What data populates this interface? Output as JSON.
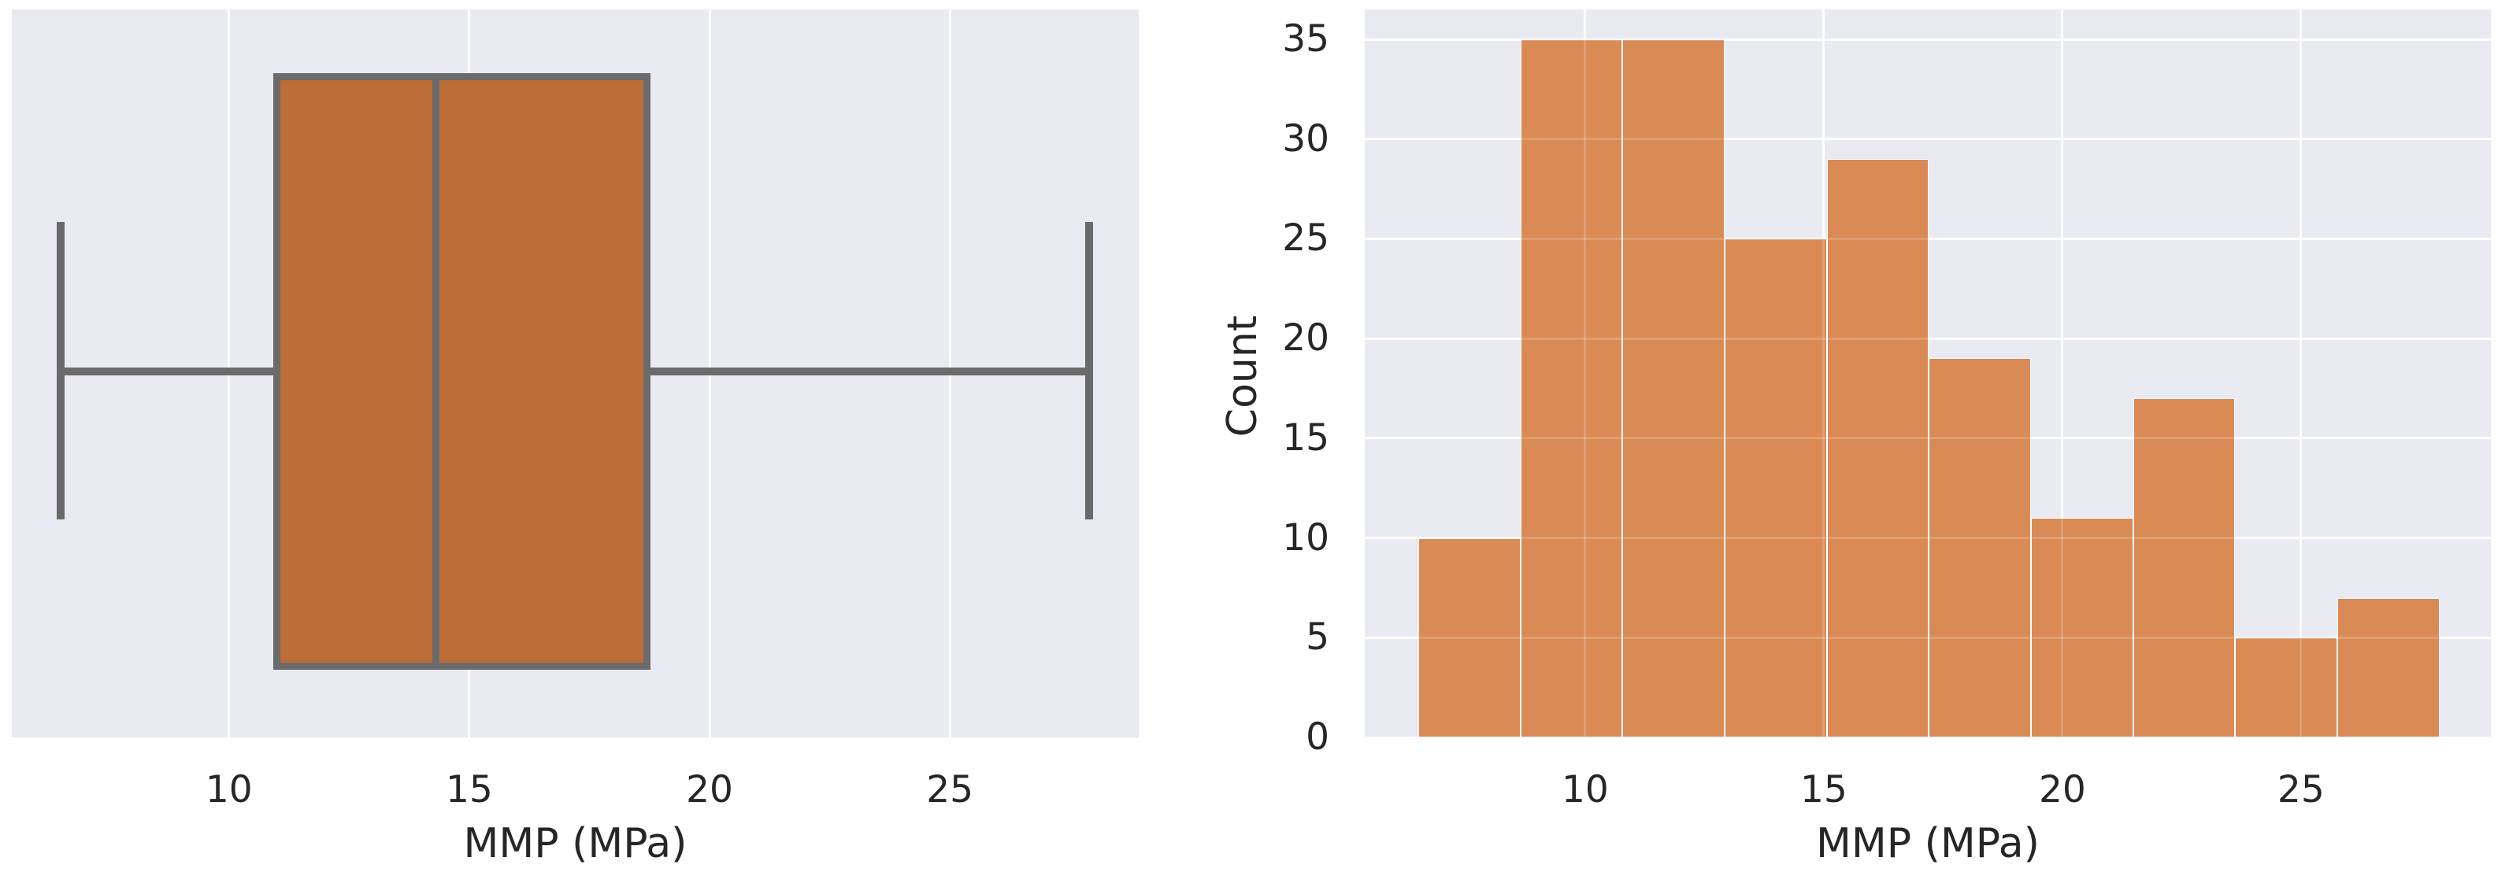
{
  "style": {
    "figure_background": "#ffffff",
    "axes_background": "#eaeaf2",
    "gridline_color": "#ffffff",
    "text_color": "#262626"
  },
  "chart_data": [
    {
      "type": "boxplot",
      "title": "",
      "xlabel": "MMP (MPa)",
      "orientation": "horizontal",
      "stats": {
        "whisker_low": 6.5,
        "q1": 11.0,
        "median": 14.3,
        "q3": 18.7,
        "whisker_high": 27.9,
        "outliers": []
      },
      "x_ticks": [
        10,
        15,
        20,
        25
      ],
      "xlim": [
        5.48,
        28.93
      ],
      "grid": "vertical-only",
      "colors": {
        "box_fill": "#bc6d38",
        "line": "#6b6b6b"
      }
    },
    {
      "type": "histogram",
      "title": "",
      "xlabel": "MMP (MPa)",
      "ylabel": "Count",
      "bin_edges": [
        6.5,
        8.64,
        10.78,
        12.92,
        15.06,
        17.2,
        19.34,
        21.48,
        23.62,
        25.76,
        27.9
      ],
      "counts": [
        10,
        35,
        35,
        25,
        29,
        19,
        11,
        17,
        5,
        7
      ],
      "x_ticks": [
        10,
        15,
        20,
        25
      ],
      "y_ticks": [
        0,
        5,
        10,
        15,
        20,
        25,
        30,
        35
      ],
      "xlim": [
        5.38,
        28.98
      ],
      "ylim": [
        0,
        36.5
      ],
      "grid": "both",
      "legend": "none",
      "colors": {
        "bar_fill": "#d98a55",
        "bar_edge": "#ffffff"
      }
    }
  ]
}
